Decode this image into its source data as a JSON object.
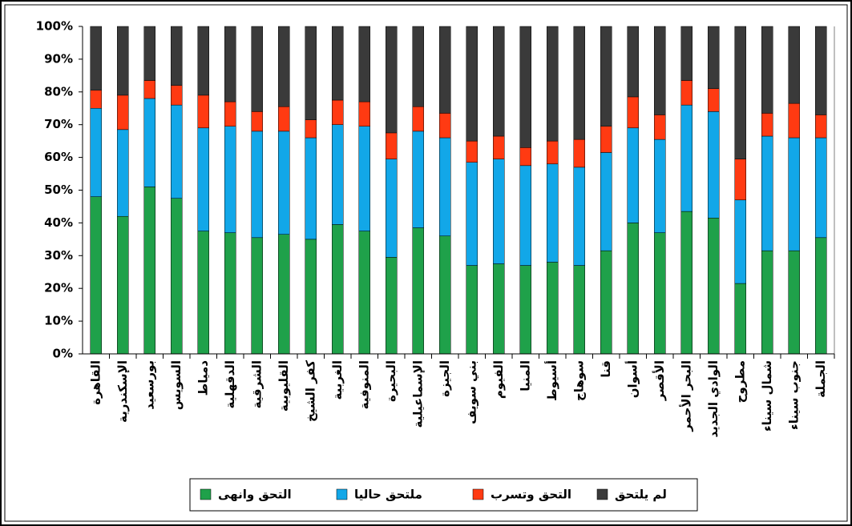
{
  "chart_data": {
    "type": "stacked_bar",
    "categories": [
      "القاهرة",
      "الإسكندرية",
      "بورسعيد",
      "السويس",
      "دمياط",
      "الدقهلية",
      "الشرقية",
      "القليوبية",
      "كفر الشيخ",
      "الغربية",
      "المنوفية",
      "البحيرة",
      "الإسماعيلية",
      "الجيزة",
      "بني سويف",
      "الفيوم",
      "المنيا",
      "أسيوط",
      "سوهاج",
      "قنا",
      "أسوان",
      "الأقصر",
      "البحر الأحمر",
      "الوادي الجديد",
      "مطروح",
      "شمال سيناء",
      "جنوب سيناء",
      "الجملة"
    ],
    "series": [
      {
        "name": "التحق وانهى",
        "color": "#1fa14a",
        "values": [
          48,
          42,
          51,
          47.5,
          37.5,
          37,
          35.5,
          36.5,
          35,
          39.5,
          37.5,
          29.5,
          38.5,
          36,
          27,
          27.5,
          27,
          28,
          27,
          31.5,
          40,
          37,
          43.5,
          41.5,
          21.5,
          31.5,
          31.5,
          35.5
        ]
      },
      {
        "name": "ملتحق حاليا",
        "color": "#12a7e8",
        "values": [
          27,
          26.5,
          27,
          28.5,
          31.5,
          32.5,
          32.5,
          31.5,
          31,
          30.5,
          32,
          30,
          29.5,
          30,
          31.5,
          32,
          30.5,
          30,
          30,
          30,
          29,
          28.5,
          32.5,
          32.5,
          25.5,
          35,
          34.5,
          30.5
        ]
      },
      {
        "name": "التحق وتسرب",
        "color": "#ff3a12",
        "values": [
          5.5,
          10.5,
          5.5,
          6,
          10,
          7.5,
          6,
          7.5,
          5.5,
          7.5,
          7.5,
          8,
          7.5,
          7.5,
          6.5,
          7,
          5.5,
          7,
          8.5,
          8,
          9.5,
          7.5,
          7.5,
          7,
          12.5,
          7,
          10.5,
          7
        ]
      },
      {
        "name": "لم يلتحق",
        "color": "#3a3a3a",
        "values": [
          19.5,
          21,
          16.5,
          18,
          21,
          23,
          26,
          24.5,
          28.5,
          22.5,
          23,
          32.5,
          24.5,
          26.5,
          35,
          33.5,
          37,
          35,
          34.5,
          30.5,
          21.5,
          27,
          16.5,
          19,
          40.5,
          26.5,
          23.5,
          27
        ]
      }
    ],
    "ylim": [
      0,
      100
    ],
    "yticks": [
      {
        "value": 0,
        "label": "0%"
      },
      {
        "value": 10,
        "label": "10%"
      },
      {
        "value": 20,
        "label": "20%"
      },
      {
        "value": 30,
        "label": "30%"
      },
      {
        "value": 40,
        "label": "40%"
      },
      {
        "value": 50,
        "label": "50%"
      },
      {
        "value": 60,
        "label": "60%"
      },
      {
        "value": 70,
        "label": "70%"
      },
      {
        "value": 80,
        "label": "80%"
      },
      {
        "value": 90,
        "label": "90%"
      },
      {
        "value": 100,
        "label": "100%"
      }
    ],
    "grid": false,
    "legend": "bottom"
  }
}
